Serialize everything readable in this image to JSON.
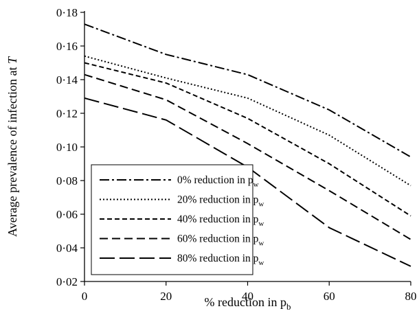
{
  "chart_data": {
    "type": "line",
    "x": [
      0,
      20,
      40,
      60,
      80
    ],
    "xlabel": {
      "main": "% reduction in p",
      "sub": "b"
    },
    "ylabel": {
      "main": "Average prevalence of infection at ",
      "italic": "T"
    },
    "xlim": [
      0,
      80
    ],
    "ylim": [
      0.02,
      0.18
    ],
    "xticks": [
      0,
      20,
      40,
      60,
      80
    ],
    "yticks": [
      0.02,
      0.04,
      0.06,
      0.08,
      0.1,
      0.12,
      0.14,
      0.16,
      0.18
    ],
    "ytick_labels": [
      "0·02",
      "0·04",
      "0·06",
      "0·08",
      "0·10",
      "0·12",
      "0·14",
      "0·16",
      "0·18"
    ],
    "xtick_labels": [
      "0",
      "20",
      "40",
      "60",
      "80"
    ],
    "grid": false,
    "legend_position": "bottom-left",
    "series": [
      {
        "name": "0% reduction in p",
        "name_sub": "w",
        "dash": "14,4,3,4",
        "values": [
          0.173,
          0.155,
          0.143,
          0.122,
          0.094
        ]
      },
      {
        "name": "20% reduction in p",
        "name_sub": "w",
        "dash": "2,3",
        "values": [
          0.154,
          0.141,
          0.129,
          0.107,
          0.077
        ]
      },
      {
        "name": "40% reduction in p",
        "name_sub": "w",
        "dash": "7,4",
        "values": [
          0.15,
          0.138,
          0.117,
          0.09,
          0.059
        ]
      },
      {
        "name": "60% reduction in p",
        "name_sub": "w",
        "dash": "12,6",
        "values": [
          0.143,
          0.128,
          0.102,
          0.074,
          0.045
        ]
      },
      {
        "name": "80% reduction in p",
        "name_sub": "w",
        "dash": "22,7",
        "values": [
          0.129,
          0.116,
          0.088,
          0.052,
          0.029
        ]
      }
    ]
  }
}
